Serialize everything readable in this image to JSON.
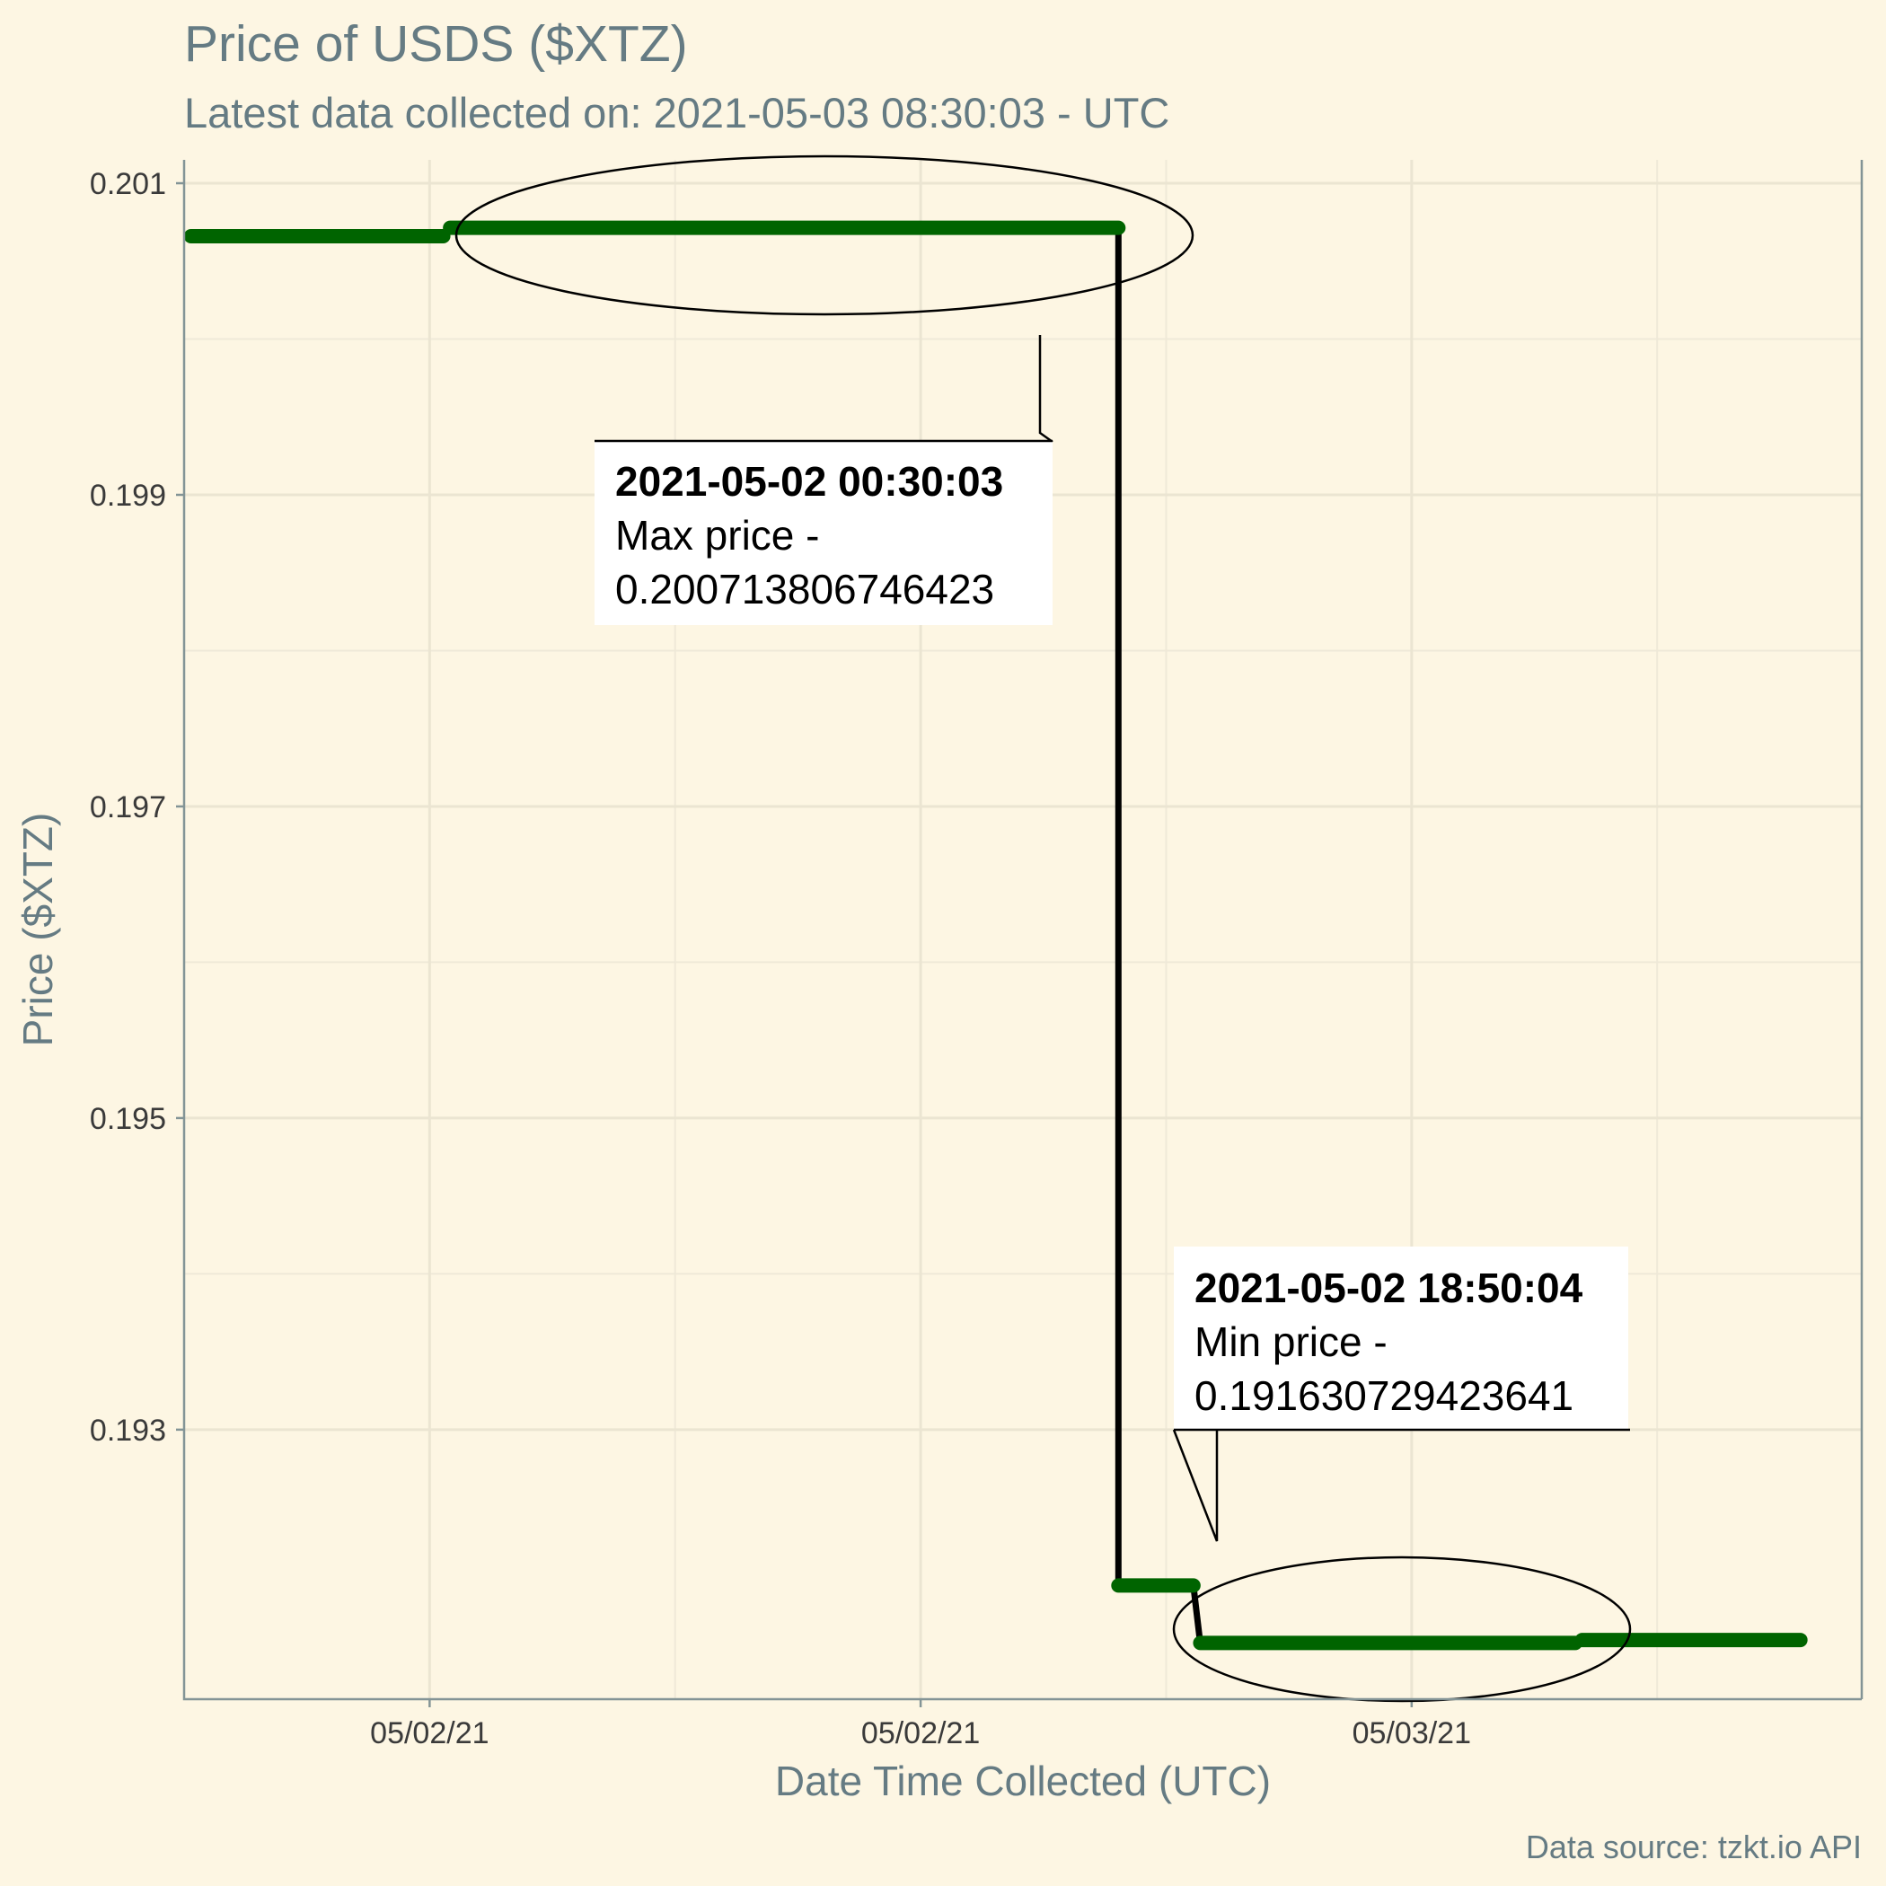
{
  "chart_data": {
    "type": "line",
    "title": "Price of USDS ($XTZ)",
    "subtitle": "Latest data collected on: 2021-05-03 08:30:03  - UTC",
    "xlabel": "Date Time Collected (UTC)",
    "ylabel": "Price ($XTZ)",
    "caption": "Data source: tzkt.io API",
    "x_ticks": [
      {
        "label": "05/02/21",
        "x": "2021-05-02 00:00"
      },
      {
        "label": "05/02/21",
        "x": "2021-05-02 12:00"
      },
      {
        "label": "05/03/21",
        "x": "2021-05-03 00:00"
      }
    ],
    "y_ticks": [
      0.193,
      0.195,
      0.197,
      0.199,
      0.201
    ],
    "xlim": [
      "2021-05-01 18:00",
      "2021-05-03 11:00"
    ],
    "ylim": [
      0.19127,
      0.20115
    ],
    "grid": true,
    "colors": {
      "line": "#006400",
      "annotation": "#000000",
      "background": "#fdf6e3"
    },
    "series": [
      {
        "values": [
          {
            "x": "2021-05-01 18:10",
            "y": 0.20066
          },
          {
            "x": "2021-05-02 00:20",
            "y": 0.20066
          },
          {
            "x": "2021-05-02 00:30",
            "y": 0.200714
          },
          {
            "x": "2021-05-02 16:50",
            "y": 0.200714
          },
          {
            "x": "2021-05-02 16:50",
            "y": 0.192
          },
          {
            "x": "2021-05-02 18:40",
            "y": 0.192
          },
          {
            "x": "2021-05-02 18:50",
            "y": 0.191631
          },
          {
            "x": "2021-05-03 04:00",
            "y": 0.191631
          },
          {
            "x": "2021-05-03 04:10",
            "y": 0.19165
          },
          {
            "x": "2021-05-03 09:30",
            "y": 0.19165
          }
        ]
      }
    ],
    "annotations": [
      {
        "type": "max",
        "date": "2021-05-02 00:30:03",
        "label": "Max price -",
        "value": "0.200713806746423"
      },
      {
        "type": "min",
        "date": "2021-05-02 18:50:04",
        "label": "Min price -",
        "value": "0.191630729423641"
      }
    ]
  }
}
